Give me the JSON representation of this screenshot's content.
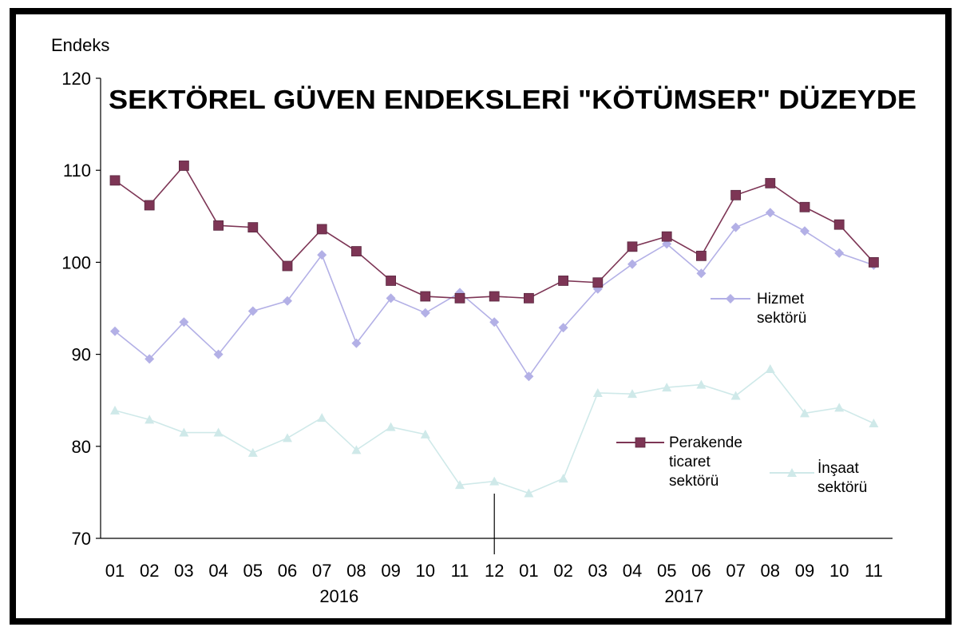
{
  "chart_data": {
    "type": "line",
    "title": "SEKTÖREL GÜVEN ENDEKSLERİ \"KÖTÜMSER\" DÜZEYDE",
    "ylabel": "Endeks",
    "ylim": [
      70,
      120
    ],
    "yticks": [
      70,
      80,
      90,
      100,
      110,
      120
    ],
    "categories": [
      "01",
      "02",
      "03",
      "04",
      "05",
      "06",
      "07",
      "08",
      "09",
      "10",
      "11",
      "12",
      "01",
      "02",
      "03",
      "04",
      "05",
      "06",
      "07",
      "08",
      "09",
      "10",
      "11"
    ],
    "year_labels": [
      {
        "label": "2016",
        "category_index": 6.5
      },
      {
        "label": "2017",
        "category_index": 16.5
      }
    ],
    "year_divider_after_index": 11,
    "grid": false,
    "series": [
      {
        "name": "Hizmet sektörü",
        "legend_lines": [
          "Hizmet",
          "sektörü"
        ],
        "color": "#b3b0e6",
        "marker": "diamond",
        "values": [
          92.5,
          89.5,
          93.5,
          90.0,
          94.7,
          95.8,
          100.8,
          91.2,
          96.1,
          94.5,
          96.7,
          93.5,
          87.6,
          92.9,
          97.1,
          99.8,
          102.0,
          98.8,
          103.8,
          105.4,
          103.4,
          101.0,
          99.7
        ]
      },
      {
        "name": "Perakende ticaret sektörü",
        "legend_lines": [
          "Perakende",
          "ticaret",
          "sektörü"
        ],
        "color": "#7d3555",
        "marker": "square",
        "values": [
          108.9,
          106.2,
          110.5,
          104.0,
          103.8,
          99.6,
          103.6,
          101.2,
          98.0,
          96.3,
          96.1,
          96.3,
          96.1,
          98.0,
          97.8,
          101.7,
          102.8,
          100.7,
          107.3,
          108.6,
          106.0,
          104.1,
          100.0
        ]
      },
      {
        "name": "İnşaat sektörü",
        "legend_lines": [
          "İnşaat",
          "sektörü"
        ],
        "color": "#cfe9e9",
        "marker": "triangle",
        "values": [
          83.9,
          82.9,
          81.5,
          81.5,
          79.3,
          80.9,
          83.1,
          79.6,
          82.1,
          81.3,
          75.8,
          76.2,
          74.9,
          76.5,
          85.8,
          85.7,
          86.4,
          86.7,
          85.5,
          88.4,
          83.6,
          84.2,
          82.5
        ]
      }
    ]
  }
}
